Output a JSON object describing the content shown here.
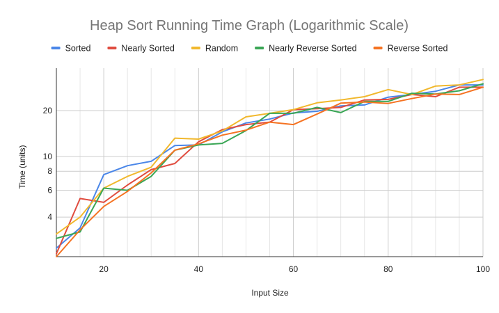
{
  "chart_data": {
    "type": "line",
    "title": "Heap Sort Running Time Graph (Logarithmic Scale)",
    "xlabel": "Input Size",
    "ylabel": "Time (units)",
    "xlim": [
      10,
      100
    ],
    "ylim": [
      2.2,
      38
    ],
    "yscale": "log",
    "x_ticks": [
      20,
      40,
      60,
      80,
      100
    ],
    "x_tick_labels": [
      "20",
      "40",
      "60",
      "80",
      "100"
    ],
    "y_ticks": [
      4,
      6,
      8,
      10,
      20
    ],
    "y_tick_labels": [
      "4",
      "6",
      "8",
      "10",
      "20"
    ],
    "grid": true,
    "legend_position": "top",
    "x": [
      10,
      15,
      20,
      25,
      30,
      35,
      40,
      45,
      50,
      55,
      60,
      65,
      70,
      75,
      80,
      85,
      90,
      95,
      100
    ],
    "series": [
      {
        "name": "Sorted",
        "color": "#4a86e8",
        "values": [
          2.5,
          3.4,
          7.6,
          8.7,
          9.3,
          11.8,
          11.9,
          14.5,
          16.6,
          17.6,
          19.3,
          19.8,
          21.5,
          21.8,
          24.5,
          25.5,
          26.8,
          29.5,
          29.5
        ]
      },
      {
        "name": "Nearly Sorted",
        "color": "#e04c3f",
        "values": [
          2.3,
          5.3,
          5.0,
          6.5,
          8.2,
          9.0,
          12.5,
          15.0,
          16.2,
          16.8,
          20.3,
          20.6,
          21.0,
          23.5,
          23.7,
          25.5,
          24.7,
          28.5,
          28.5
        ]
      },
      {
        "name": "Random",
        "color": "#f1b82d",
        "values": [
          3.1,
          4.0,
          6.2,
          7.4,
          8.5,
          13.2,
          13.0,
          14.7,
          18.2,
          19.2,
          20.3,
          22.5,
          23.5,
          24.7,
          27.5,
          25.5,
          29.0,
          29.5,
          32.0
        ]
      },
      {
        "name": "Nearly Reverse Sorted",
        "color": "#3aa655",
        "values": [
          2.9,
          3.2,
          6.2,
          6.0,
          7.4,
          11.0,
          11.9,
          12.2,
          14.8,
          19.2,
          19.2,
          21.0,
          19.4,
          23.0,
          23.0,
          26.0,
          25.7,
          27.0,
          30.0
        ]
      },
      {
        "name": "Reverse Sorted",
        "color": "#f57322",
        "values": [
          2.2,
          3.3,
          4.7,
          5.9,
          7.8,
          11.0,
          12.1,
          13.8,
          14.9,
          16.8,
          16.2,
          19.0,
          22.4,
          22.8,
          22.3,
          24.0,
          25.7,
          25.5,
          28.5
        ]
      }
    ]
  }
}
